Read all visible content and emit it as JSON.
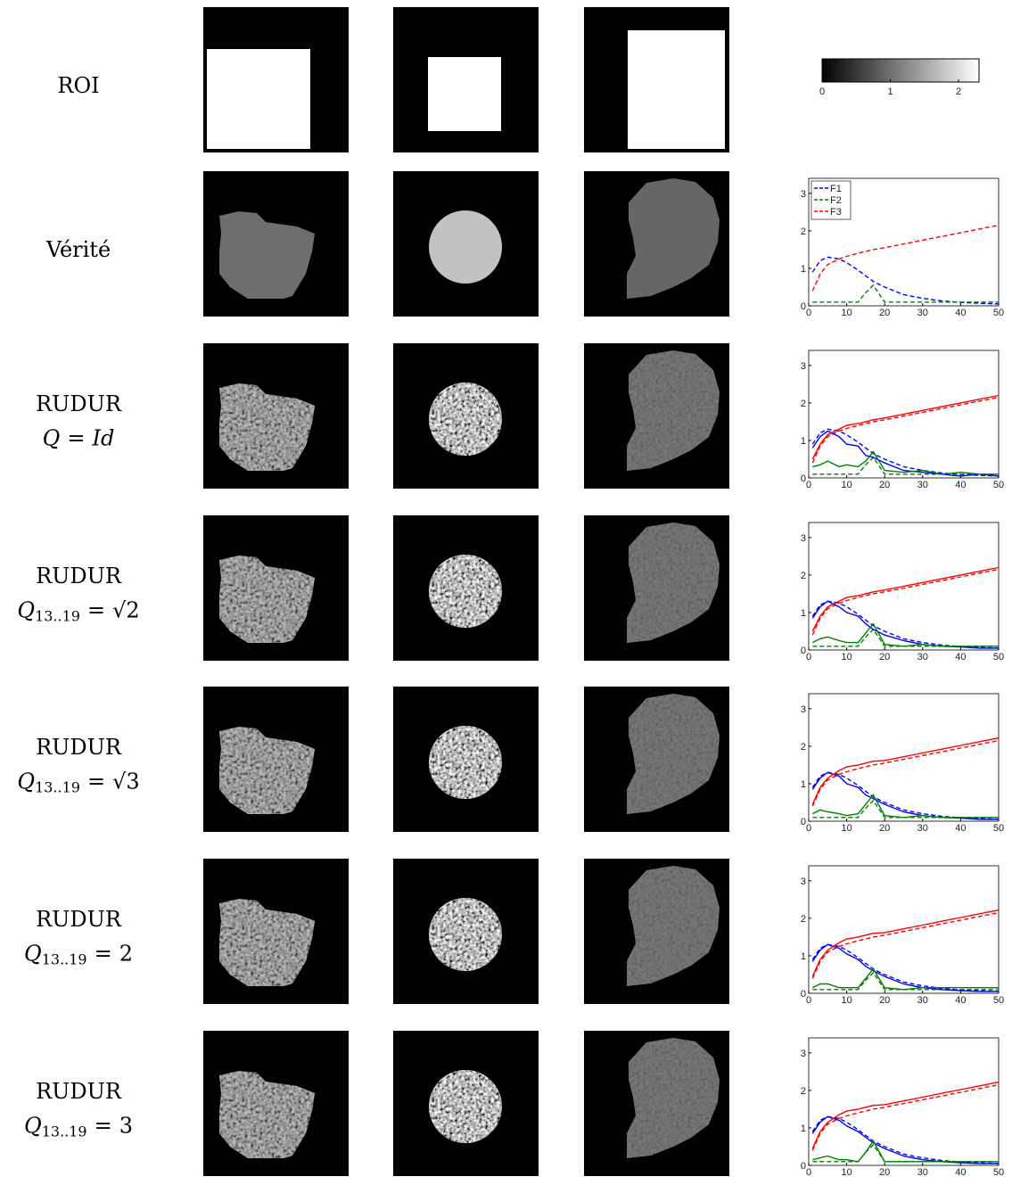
{
  "rows": [
    {
      "label": "ROI"
    },
    {
      "label": "Vérité"
    },
    {
      "label": "RUDUR",
      "formula": {
        "lhs": "Q",
        "rel": "=",
        "rhs": "Id"
      }
    },
    {
      "label": "RUDUR",
      "formula": {
        "lhs": "Q",
        "sub": "13..19",
        "rel": "=",
        "rhs": "√2"
      }
    },
    {
      "label": "RUDUR",
      "formula": {
        "lhs": "Q",
        "sub": "13..19",
        "rel": "=",
        "rhs": "√3"
      }
    },
    {
      "label": "RUDUR",
      "formula": {
        "lhs": "Q",
        "sub": "13..19",
        "rel": "=",
        "rhs": "2"
      }
    },
    {
      "label": "RUDUR",
      "formula": {
        "lhs": "Q",
        "sub": "13..19",
        "rel": "=",
        "rhs": "3"
      }
    }
  ],
  "colorbar": {
    "lim": [
      0,
      2.3
    ],
    "ticks": [
      0,
      1,
      2
    ]
  },
  "charts": [
    {
      "type": "line",
      "xlim": [
        0,
        50
      ],
      "ylim": [
        0,
        3.4
      ],
      "xticks": [
        0,
        10,
        20,
        30,
        40,
        50
      ],
      "yticks": [
        0,
        1,
        2,
        3
      ],
      "x": [
        1,
        3,
        5,
        8,
        10,
        13,
        15,
        17,
        20,
        25,
        30,
        35,
        40,
        45,
        50
      ],
      "series": [
        {
          "name": "F1",
          "color": "#0000ff",
          "dash": true,
          "values": [
            0.9,
            1.2,
            1.3,
            1.25,
            1.15,
            0.95,
            0.8,
            0.65,
            0.5,
            0.3,
            0.2,
            0.13,
            0.09,
            0.07,
            0.05
          ]
        },
        {
          "name": "F2",
          "color": "#008000",
          "dash": true,
          "values": [
            0.1,
            0.1,
            0.1,
            0.1,
            0.1,
            0.1,
            0.35,
            0.55,
            0.1,
            0.1,
            0.1,
            0.1,
            0.1,
            0.1,
            0.1
          ]
        },
        {
          "name": "F3",
          "color": "#ff0000",
          "dash": true,
          "values": [
            0.4,
            0.85,
            1.1,
            1.25,
            1.32,
            1.4,
            1.45,
            1.5,
            1.55,
            1.65,
            1.75,
            1.85,
            1.95,
            2.05,
            2.15
          ]
        }
      ]
    },
    {
      "type": "line",
      "xlim": [
        0,
        50
      ],
      "ylim": [
        0,
        3.4
      ],
      "xticks": [
        0,
        10,
        20,
        30,
        40,
        50
      ],
      "yticks": [
        0,
        1,
        2,
        3
      ],
      "x": [
        1,
        3,
        5,
        8,
        10,
        13,
        15,
        17,
        20,
        25,
        30,
        35,
        40,
        45,
        50
      ],
      "series": [
        {
          "color": "#0000ff",
          "dash": true,
          "values": [
            0.9,
            1.2,
            1.3,
            1.25,
            1.15,
            0.95,
            0.8,
            0.65,
            0.5,
            0.3,
            0.2,
            0.13,
            0.09,
            0.07,
            0.05
          ]
        },
        {
          "color": "#008000",
          "dash": true,
          "values": [
            0.1,
            0.1,
            0.1,
            0.1,
            0.1,
            0.1,
            0.35,
            0.55,
            0.1,
            0.1,
            0.1,
            0.1,
            0.1,
            0.1,
            0.1
          ]
        },
        {
          "color": "#ff0000",
          "dash": true,
          "values": [
            0.4,
            0.85,
            1.1,
            1.25,
            1.32,
            1.4,
            1.45,
            1.5,
            1.55,
            1.65,
            1.75,
            1.85,
            1.95,
            2.05,
            2.15
          ]
        },
        {
          "color": "#0000ff",
          "dash": false,
          "values": [
            0.8,
            1.1,
            1.25,
            1.1,
            0.9,
            0.85,
            0.6,
            0.55,
            0.4,
            0.2,
            0.15,
            0.1,
            0.05,
            0.1,
            0.05
          ]
        },
        {
          "color": "#008000",
          "dash": false,
          "values": [
            0.3,
            0.35,
            0.45,
            0.3,
            0.35,
            0.3,
            0.45,
            0.7,
            0.2,
            0.15,
            0.2,
            0.1,
            0.15,
            0.1,
            0.1
          ]
        },
        {
          "color": "#ff0000",
          "dash": false,
          "values": [
            0.5,
            0.9,
            1.15,
            1.3,
            1.4,
            1.45,
            1.5,
            1.55,
            1.6,
            1.7,
            1.8,
            1.9,
            2.0,
            2.1,
            2.2
          ]
        }
      ]
    },
    {
      "type": "line",
      "xlim": [
        0,
        50
      ],
      "ylim": [
        0,
        3.4
      ],
      "xticks": [
        0,
        10,
        20,
        30,
        40,
        50
      ],
      "yticks": [
        0,
        1,
        2,
        3
      ],
      "x": [
        1,
        3,
        5,
        8,
        10,
        13,
        15,
        17,
        20,
        25,
        30,
        35,
        40,
        45,
        50
      ],
      "series": [
        {
          "color": "#0000ff",
          "dash": true,
          "values": [
            0.9,
            1.2,
            1.3,
            1.25,
            1.15,
            0.95,
            0.8,
            0.65,
            0.5,
            0.3,
            0.2,
            0.13,
            0.09,
            0.07,
            0.05
          ]
        },
        {
          "color": "#008000",
          "dash": true,
          "values": [
            0.1,
            0.1,
            0.1,
            0.1,
            0.1,
            0.1,
            0.35,
            0.55,
            0.1,
            0.1,
            0.1,
            0.1,
            0.1,
            0.1,
            0.1
          ]
        },
        {
          "color": "#ff0000",
          "dash": true,
          "values": [
            0.4,
            0.85,
            1.1,
            1.25,
            1.32,
            1.4,
            1.45,
            1.5,
            1.55,
            1.65,
            1.75,
            1.85,
            1.95,
            2.05,
            2.15
          ]
        },
        {
          "color": "#0000ff",
          "dash": false,
          "values": [
            0.85,
            1.15,
            1.3,
            1.15,
            1.0,
            0.9,
            0.7,
            0.55,
            0.4,
            0.25,
            0.15,
            0.1,
            0.08,
            0.05,
            0.05
          ]
        },
        {
          "color": "#008000",
          "dash": false,
          "values": [
            0.2,
            0.3,
            0.35,
            0.25,
            0.2,
            0.2,
            0.45,
            0.7,
            0.15,
            0.1,
            0.15,
            0.1,
            0.1,
            0.1,
            0.1
          ]
        },
        {
          "color": "#ff0000",
          "dash": false,
          "values": [
            0.5,
            0.9,
            1.15,
            1.3,
            1.4,
            1.45,
            1.5,
            1.55,
            1.6,
            1.7,
            1.8,
            1.9,
            2.0,
            2.1,
            2.2
          ]
        }
      ]
    },
    {
      "type": "line",
      "xlim": [
        0,
        50
      ],
      "ylim": [
        0,
        3.4
      ],
      "xticks": [
        0,
        10,
        20,
        30,
        40,
        50
      ],
      "yticks": [
        0,
        1,
        2,
        3
      ],
      "x": [
        1,
        3,
        5,
        8,
        10,
        13,
        15,
        17,
        20,
        25,
        30,
        35,
        40,
        45,
        50
      ],
      "series": [
        {
          "color": "#0000ff",
          "dash": true,
          "values": [
            0.9,
            1.2,
            1.3,
            1.25,
            1.15,
            0.95,
            0.8,
            0.65,
            0.5,
            0.3,
            0.2,
            0.13,
            0.09,
            0.07,
            0.05
          ]
        },
        {
          "color": "#008000",
          "dash": true,
          "values": [
            0.1,
            0.1,
            0.1,
            0.1,
            0.1,
            0.1,
            0.35,
            0.55,
            0.1,
            0.1,
            0.1,
            0.1,
            0.1,
            0.1,
            0.1
          ]
        },
        {
          "color": "#ff0000",
          "dash": true,
          "values": [
            0.4,
            0.85,
            1.1,
            1.25,
            1.32,
            1.4,
            1.45,
            1.5,
            1.55,
            1.65,
            1.75,
            1.85,
            1.95,
            2.05,
            2.15
          ]
        },
        {
          "color": "#0000ff",
          "dash": false,
          "values": [
            0.85,
            1.15,
            1.3,
            1.2,
            1.0,
            0.9,
            0.7,
            0.6,
            0.45,
            0.25,
            0.15,
            0.1,
            0.08,
            0.05,
            0.05
          ]
        },
        {
          "color": "#008000",
          "dash": false,
          "values": [
            0.2,
            0.3,
            0.25,
            0.2,
            0.15,
            0.2,
            0.45,
            0.7,
            0.15,
            0.1,
            0.15,
            0.1,
            0.1,
            0.1,
            0.1
          ]
        },
        {
          "color": "#ff0000",
          "dash": false,
          "values": [
            0.45,
            0.9,
            1.15,
            1.35,
            1.45,
            1.5,
            1.55,
            1.6,
            1.62,
            1.72,
            1.82,
            1.92,
            2.02,
            2.12,
            2.22
          ]
        }
      ]
    },
    {
      "type": "line",
      "xlim": [
        0,
        50
      ],
      "ylim": [
        0,
        3.4
      ],
      "xticks": [
        0,
        10,
        20,
        30,
        40,
        50
      ],
      "yticks": [
        0,
        1,
        2,
        3
      ],
      "x": [
        1,
        3,
        5,
        8,
        10,
        13,
        15,
        17,
        20,
        25,
        30,
        35,
        40,
        45,
        50
      ],
      "series": [
        {
          "color": "#0000ff",
          "dash": true,
          "values": [
            0.9,
            1.2,
            1.3,
            1.25,
            1.15,
            0.95,
            0.8,
            0.65,
            0.5,
            0.3,
            0.2,
            0.13,
            0.09,
            0.07,
            0.05
          ]
        },
        {
          "color": "#008000",
          "dash": true,
          "values": [
            0.1,
            0.1,
            0.1,
            0.1,
            0.1,
            0.1,
            0.35,
            0.55,
            0.1,
            0.1,
            0.1,
            0.1,
            0.1,
            0.1,
            0.1
          ]
        },
        {
          "color": "#ff0000",
          "dash": true,
          "values": [
            0.4,
            0.85,
            1.1,
            1.25,
            1.32,
            1.4,
            1.45,
            1.5,
            1.55,
            1.65,
            1.75,
            1.85,
            1.95,
            2.05,
            2.15
          ]
        },
        {
          "color": "#0000ff",
          "dash": false,
          "values": [
            0.85,
            1.15,
            1.3,
            1.2,
            1.05,
            0.9,
            0.72,
            0.6,
            0.45,
            0.25,
            0.15,
            0.1,
            0.07,
            0.05,
            0.05
          ]
        },
        {
          "color": "#008000",
          "dash": false,
          "values": [
            0.15,
            0.25,
            0.25,
            0.15,
            0.15,
            0.15,
            0.4,
            0.65,
            0.15,
            0.1,
            0.15,
            0.15,
            0.15,
            0.15,
            0.15
          ]
        },
        {
          "color": "#ff0000",
          "dash": false,
          "values": [
            0.45,
            0.9,
            1.15,
            1.35,
            1.45,
            1.5,
            1.55,
            1.6,
            1.62,
            1.72,
            1.82,
            1.92,
            2.02,
            2.12,
            2.22
          ]
        }
      ]
    },
    {
      "type": "line",
      "xlim": [
        0,
        50
      ],
      "ylim": [
        0,
        3.4
      ],
      "xticks": [
        0,
        10,
        20,
        30,
        40,
        50
      ],
      "yticks": [
        0,
        1,
        2,
        3
      ],
      "x": [
        1,
        3,
        5,
        8,
        10,
        13,
        15,
        17,
        20,
        25,
        30,
        35,
        40,
        45,
        50
      ],
      "series": [
        {
          "color": "#0000ff",
          "dash": true,
          "values": [
            0.9,
            1.2,
            1.3,
            1.25,
            1.15,
            0.95,
            0.8,
            0.65,
            0.5,
            0.3,
            0.2,
            0.13,
            0.09,
            0.07,
            0.05
          ]
        },
        {
          "color": "#008000",
          "dash": true,
          "values": [
            0.1,
            0.1,
            0.1,
            0.1,
            0.1,
            0.1,
            0.35,
            0.55,
            0.1,
            0.1,
            0.1,
            0.1,
            0.1,
            0.1,
            0.1
          ]
        },
        {
          "color": "#ff0000",
          "dash": true,
          "values": [
            0.4,
            0.85,
            1.1,
            1.25,
            1.32,
            1.4,
            1.45,
            1.5,
            1.55,
            1.65,
            1.75,
            1.85,
            1.95,
            2.05,
            2.15
          ]
        },
        {
          "color": "#0000ff",
          "dash": false,
          "values": [
            0.85,
            1.15,
            1.3,
            1.2,
            1.05,
            0.9,
            0.75,
            0.6,
            0.45,
            0.25,
            0.15,
            0.1,
            0.07,
            0.05,
            0.05
          ]
        },
        {
          "color": "#008000",
          "dash": false,
          "values": [
            0.15,
            0.2,
            0.25,
            0.15,
            0.15,
            0.1,
            0.35,
            0.65,
            0.1,
            0.1,
            0.1,
            0.1,
            0.1,
            0.1,
            0.1
          ]
        },
        {
          "color": "#ff0000",
          "dash": false,
          "values": [
            0.45,
            0.9,
            1.15,
            1.35,
            1.45,
            1.5,
            1.55,
            1.6,
            1.62,
            1.72,
            1.82,
            1.92,
            2.02,
            2.12,
            2.22
          ]
        }
      ]
    }
  ]
}
